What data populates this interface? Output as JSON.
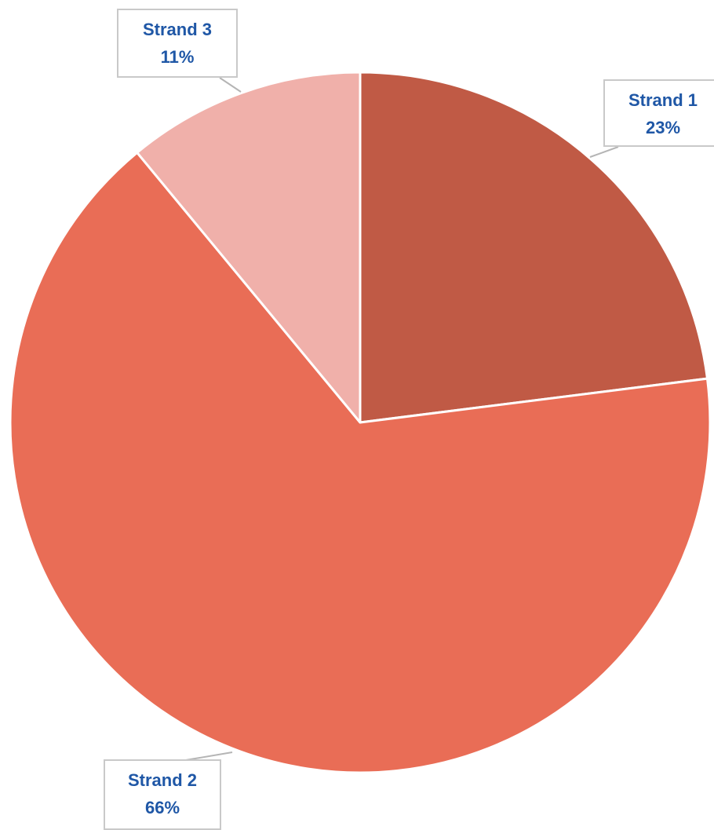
{
  "chart_data": {
    "type": "pie",
    "categories": [
      "Strand 1",
      "Strand 2",
      "Strand 3"
    ],
    "values": [
      23,
      66,
      11
    ],
    "labels": [
      "23%",
      "66%",
      "11%"
    ],
    "colors": [
      "#c05a45",
      "#e96d56",
      "#f0b0aa"
    ],
    "label_text_color": "#1f57a6",
    "label_border_color": "#c9c9c9",
    "leader_line_color": "#b5b5b5",
    "slice_border_color": "#ffffff",
    "start_angle": "top",
    "direction": "clockwise"
  }
}
